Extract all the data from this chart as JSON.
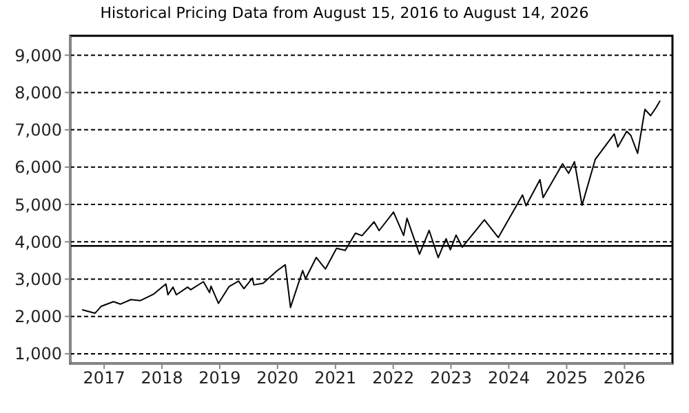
{
  "chart_data": {
    "type": "line",
    "title": "Historical Pricing Data from August 15, 2016 to August 14, 2026",
    "x": [
      "2016-08-15",
      "2016-11-04",
      "2016-12-13",
      "2017-03-01",
      "2017-04-13",
      "2017-06-19",
      "2017-08-18",
      "2017-11-07",
      "2018-01-26",
      "2018-02-08",
      "2018-03-12",
      "2018-04-02",
      "2018-06-12",
      "2018-07-02",
      "2018-09-20",
      "2018-10-29",
      "2018-11-07",
      "2018-12-24",
      "2019-03-01",
      "2019-04-30",
      "2019-06-03",
      "2019-07-26",
      "2019-08-05",
      "2019-10-02",
      "2019-12-31",
      "2020-02-19",
      "2020-03-23",
      "2020-06-08",
      "2020-06-26",
      "2020-09-02",
      "2020-10-30",
      "2021-01-08",
      "2021-03-04",
      "2021-05-07",
      "2021-06-18",
      "2021-09-02",
      "2021-10-04",
      "2022-01-03",
      "2022-03-08",
      "2022-03-29",
      "2022-06-16",
      "2022-08-16",
      "2022-10-12",
      "2022-12-01",
      "2022-12-28",
      "2023-02-02",
      "2023-03-13",
      "2023-07-31",
      "2023-10-27",
      "2024-03-28",
      "2024-04-19",
      "2024-07-16",
      "2024-08-05",
      "2024-12-06",
      "2025-01-13",
      "2025-02-19",
      "2025-04-08",
      "2025-06-30",
      "2025-10-28",
      "2025-11-20",
      "2026-01-15",
      "2026-02-10",
      "2026-03-25",
      "2026-05-10",
      "2026-06-15",
      "2026-07-20",
      "2026-08-14"
    ],
    "series": [
      {
        "color": "#000000",
        "values": [
          2180,
          2085,
          2270,
          2395,
          2330,
          2450,
          2425,
          2590,
          2870,
          2580,
          2785,
          2580,
          2785,
          2715,
          2930,
          2640,
          2810,
          2350,
          2800,
          2945,
          2745,
          3025,
          2845,
          2890,
          3230,
          3385,
          2240,
          3230,
          3010,
          3580,
          3270,
          3825,
          3770,
          4230,
          4165,
          4535,
          4300,
          4795,
          4170,
          4630,
          3665,
          4305,
          3575,
          4080,
          3785,
          4180,
          3855,
          4590,
          4115,
          5255,
          4965,
          5665,
          5185,
          6090,
          5835,
          6145,
          4980,
          6205,
          6890,
          6540,
          6960,
          6850,
          6370,
          7550,
          7380,
          7600,
          7780
        ]
      }
    ],
    "xlim": [
      "2016-06-01",
      "2026-10-31"
    ],
    "xticks": [
      "2017",
      "2018",
      "2019",
      "2020",
      "2021",
      "2022",
      "2023",
      "2024",
      "2025",
      "2026"
    ],
    "ylim": [
      740,
      9520
    ],
    "yticks": [
      {
        "value": 1000,
        "label": "1,000"
      },
      {
        "value": 2000,
        "label": "2,000"
      },
      {
        "value": 3000,
        "label": "3,000"
      },
      {
        "value": 4000,
        "label": "4,000"
      },
      {
        "value": 5000,
        "label": "5,000"
      },
      {
        "value": 6000,
        "label": "6,000"
      },
      {
        "value": 7000,
        "label": "7,000"
      },
      {
        "value": 8000,
        "label": "8,000"
      },
      {
        "value": 9000,
        "label": "9,000"
      }
    ],
    "grid": "y",
    "ref_lines": [
      {
        "axis": "y",
        "value": 3890,
        "color": "#000000"
      }
    ],
    "legend": false,
    "marker": "none",
    "line_style": "solid"
  }
}
